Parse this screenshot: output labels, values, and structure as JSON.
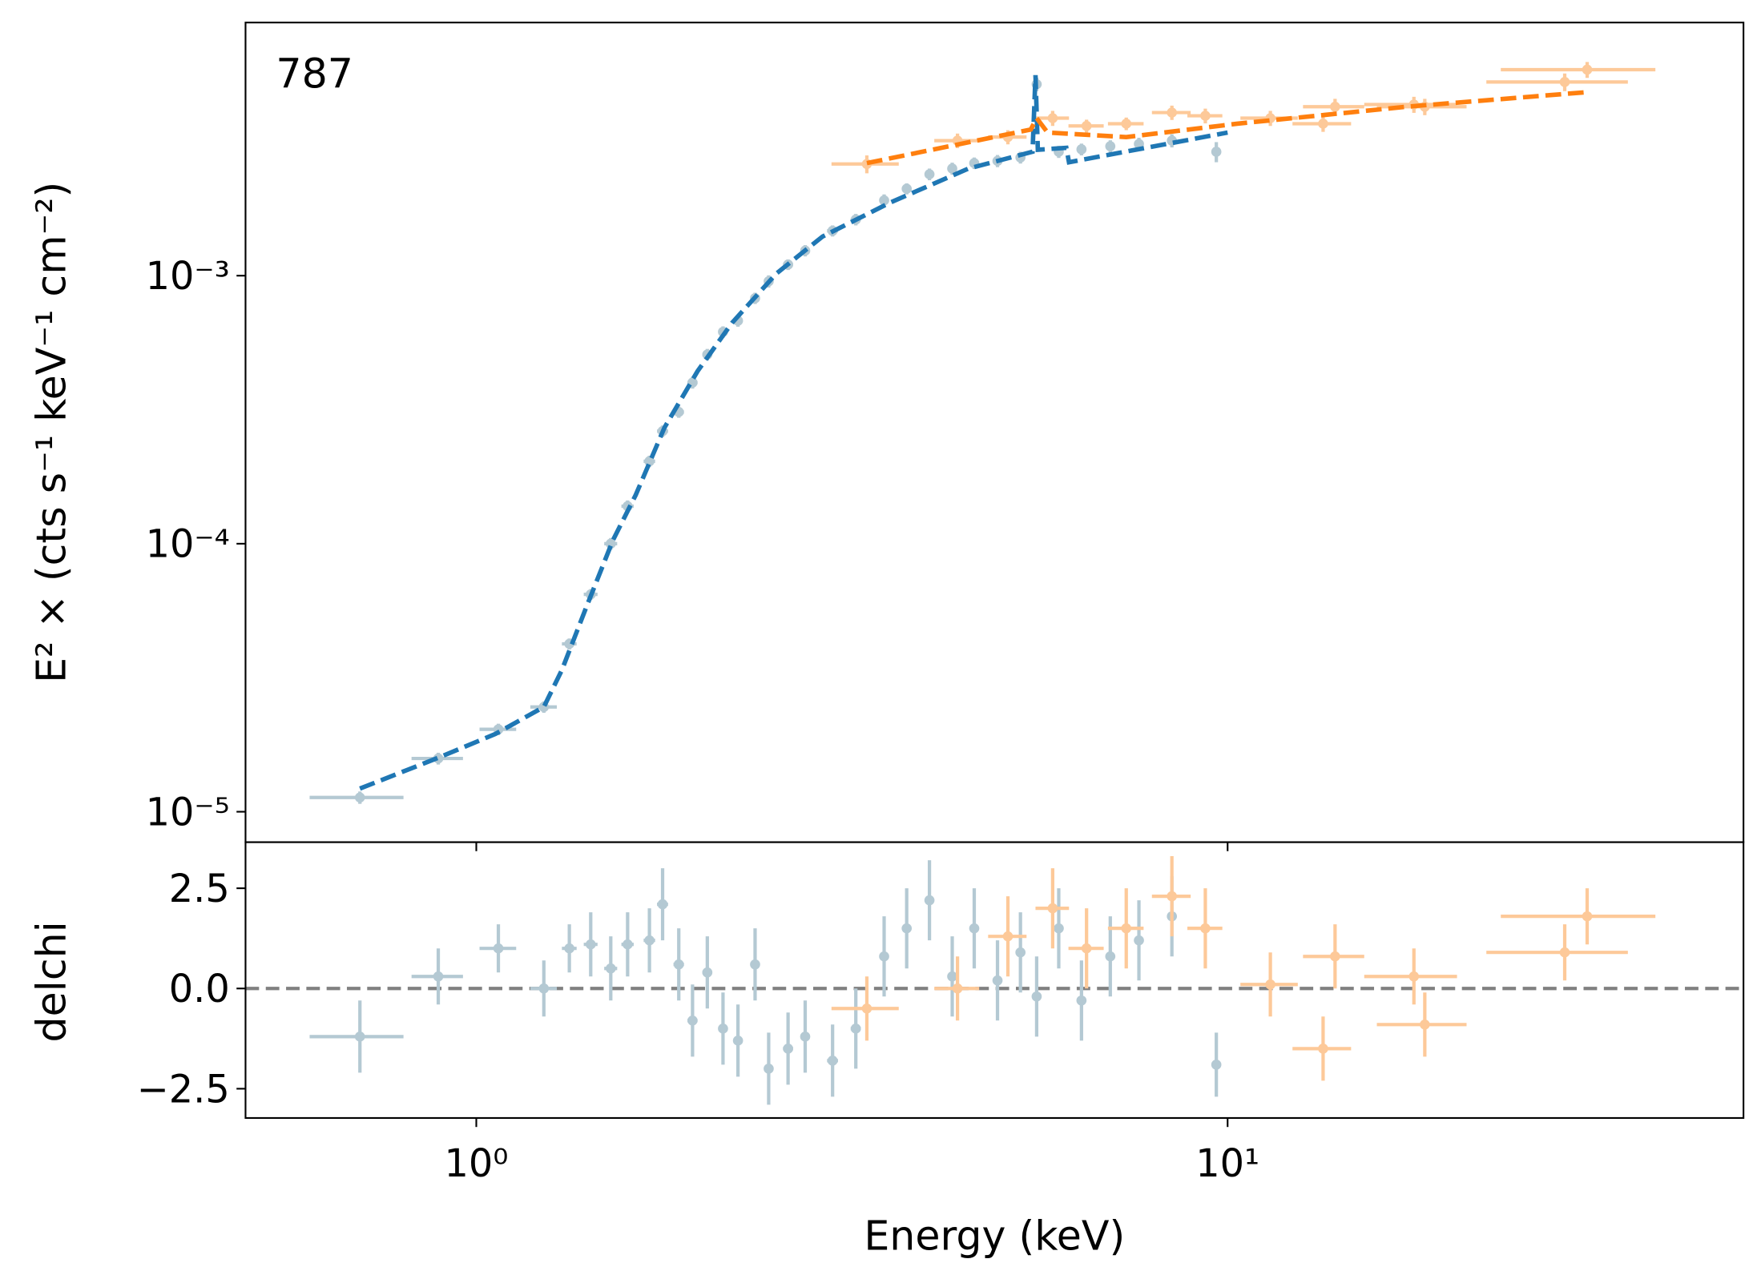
{
  "chart_data": [
    {
      "type": "errorbar",
      "annotation": "787",
      "ylabel": "E² ×  (cts s⁻¹ keV⁻¹ cm⁻²)",
      "xscale": "log",
      "yscale": "log",
      "xlim": [
        0.493,
        48.6
      ],
      "ylim": [
        7.7e-06,
        0.0088
      ],
      "yticks": [
        {
          "value": 1e-05,
          "label": "10⁻⁵"
        },
        {
          "value": 0.0001,
          "label": "10⁻⁴"
        },
        {
          "value": 0.001,
          "label": "10⁻³"
        }
      ],
      "series": [
        {
          "color": "#b4c9d3",
          "x": [
            0.7,
            0.89,
            1.07,
            1.23,
            1.33,
            1.42,
            1.51,
            1.59,
            1.7,
            1.77,
            1.86,
            1.94,
            2.03,
            2.13,
            2.23,
            2.35,
            2.45,
            2.6,
            2.74,
            2.98,
            3.2,
            3.49,
            3.74,
            4.01,
            4.3,
            4.6,
            4.94,
            5.3,
            5.57,
            5.96,
            6.39,
            6.98,
            7.62,
            8.43,
            9.66
          ],
          "xerr": [
            0.1,
            0.07,
            0.06,
            0.05,
            0.03,
            0.03,
            0.03,
            0.03,
            0.03,
            0.03,
            0.03,
            0.03,
            0.03,
            0.03,
            0.03,
            0.03,
            0.03,
            0.04,
            0.04,
            0.05,
            0.05,
            0.05,
            0.05,
            0.05,
            0.05,
            0.06,
            0.06,
            0.06,
            0.03,
            0.06,
            0.07,
            0.07,
            0.08,
            0.1,
            0.1
          ],
          "values": [
            1.13e-05,
            1.58e-05,
            2.03e-05,
            2.46e-05,
            4.23e-05,
            6.47e-05,
            0.0001,
            0.000138,
            0.000203,
            0.000263,
            0.00031,
            0.000399,
            0.000508,
            0.000617,
            0.000679,
            0.000824,
            0.000953,
            0.0011,
            0.00124,
            0.00147,
            0.00162,
            0.00191,
            0.00211,
            0.00239,
            0.00251,
            0.00263,
            0.00268,
            0.00276,
            0.00518,
            0.0029,
            0.00296,
            0.00304,
            0.0031,
            0.00319,
            0.0029
          ],
          "yerr": [
            6e-07,
            8e-07,
            1e-06,
            1.2e-06,
            2e-06,
            3e-06,
            5e-06,
            7e-06,
            1e-05,
            1.3e-05,
            1.5e-05,
            2e-05,
            2.5e-05,
            3e-05,
            3.4e-05,
            4e-05,
            5e-05,
            5e-05,
            6e-05,
            7e-05,
            8e-05,
            0.0001,
            0.0001,
            0.00012,
            0.00013,
            0.00013,
            0.00014,
            0.00014,
            0.0003,
            0.00015,
            0.00015,
            0.00016,
            0.00017,
            0.00018,
            0.00025
          ]
        },
        {
          "color": "#fdc999",
          "x": [
            3.31,
            4.37,
            5.1,
            5.85,
            6.49,
            7.33,
            8.43,
            9.34,
            11.4,
            13.4,
            13.9,
            17.7,
            18.3,
            28.1,
            30.1
          ],
          "xerr": [
            0.34,
            0.3,
            0.3,
            0.3,
            0.35,
            0.4,
            0.5,
            0.5,
            1.0,
            1.2,
            1.3,
            2.5,
            2.5,
            6,
            7
          ],
          "values": [
            0.00261,
            0.00319,
            0.00329,
            0.00387,
            0.00362,
            0.00369,
            0.00406,
            0.00395,
            0.00387,
            0.00369,
            0.00427,
            0.00435,
            0.00427,
            0.00528,
            0.00587
          ],
          "yerr": [
            0.0002,
            0.0002,
            0.0002,
            0.00025,
            0.0002,
            0.0002,
            0.00025,
            0.00025,
            0.00025,
            0.00025,
            0.0003,
            0.0003,
            0.0003,
            0.0004,
            0.0004
          ]
        },
        {
          "color": "#1f77b4",
          "linestyle": "dashed",
          "x": [
            0.7,
            0.89,
            1.06,
            1.23,
            1.3,
            1.4,
            1.52,
            1.63,
            1.78,
            1.97,
            2.19,
            2.51,
            2.89,
            3.55,
            4.52,
            5.5,
            5.55,
            5.59,
            6.1,
            6.15,
            10.0
          ],
          "values": [
            1.22e-05,
            1.59e-05,
            1.95e-05,
            2.46e-05,
            3.38e-05,
            5.77e-05,
            0.000103,
            0.000152,
            0.000271,
            0.00044,
            0.000667,
            0.00102,
            0.0014,
            0.00187,
            0.00251,
            0.0029,
            0.0056,
            0.00295,
            0.003,
            0.00265,
            0.00342
          ]
        },
        {
          "color": "#ff7f0e",
          "linestyle": "dashed",
          "x": [
            3.31,
            5.47,
            5.57,
            5.76,
            7.33,
            10.3,
            17.3,
            30.1
          ],
          "values": [
            0.00263,
            0.00351,
            0.00387,
            0.00342,
            0.00329,
            0.00369,
            0.00427,
            0.00484
          ]
        }
      ]
    },
    {
      "type": "errorbar",
      "xlabel": "Energy (keV)",
      "ylabel": "delchi",
      "xscale": "log",
      "xlim": [
        0.493,
        48.6
      ],
      "ylim": [
        -3.23,
        3.65
      ],
      "xticks": [
        {
          "value": 1,
          "label": "10⁰"
        },
        {
          "value": 10,
          "label": "10¹"
        }
      ],
      "yticks": [
        {
          "value": -2.5,
          "label": "−2.5"
        },
        {
          "value": 0,
          "label": "0.0"
        },
        2.5
      ],
      "reference_line": 0,
      "reference_color": "#808080",
      "series": [
        {
          "color": "#b4c9d3",
          "values": [
            -1.2,
            0.3,
            1.0,
            0.0,
            1.0,
            1.1,
            0.5,
            1.1,
            1.2,
            2.1,
            0.6,
            -0.8,
            0.4,
            -1.0,
            -1.3,
            0.6,
            -2.0,
            -1.5,
            -1.2,
            -1.8,
            -1.0,
            0.8,
            1.5,
            2.2,
            0.3,
            1.5,
            0.2,
            0.9,
            -0.2,
            1.5,
            -0.3,
            0.8,
            1.2,
            1.8,
            -1.9
          ],
          "yerr": [
            0.9,
            0.7,
            0.6,
            0.7,
            0.6,
            0.8,
            0.8,
            0.8,
            0.8,
            0.9,
            0.9,
            0.9,
            0.9,
            0.9,
            0.9,
            0.9,
            0.9,
            0.9,
            0.9,
            0.9,
            1.0,
            1.0,
            1.0,
            1.0,
            1.0,
            1.0,
            1.0,
            1.0,
            1.0,
            1.0,
            1.0,
            1.0,
            1.0,
            1.0,
            0.8
          ]
        },
        {
          "color": "#fdc999",
          "values": [
            -0.5,
            0.0,
            1.3,
            2.0,
            1.0,
            1.5,
            2.3,
            1.5,
            0.1,
            -1.5,
            0.8,
            0.3,
            -0.9,
            0.9,
            1.8
          ],
          "yerr": [
            0.8,
            0.8,
            1.0,
            1.0,
            1.0,
            1.0,
            1.0,
            1.0,
            0.8,
            0.8,
            0.8,
            0.7,
            0.8,
            0.7,
            0.7
          ]
        }
      ]
    }
  ]
}
